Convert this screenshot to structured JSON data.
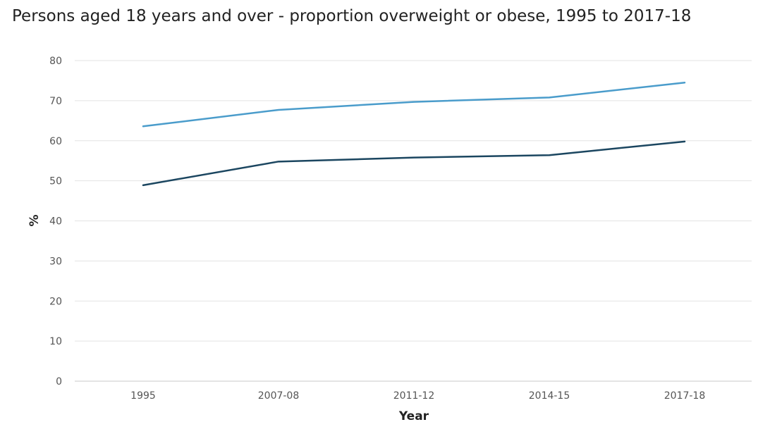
{
  "chart_data": {
    "type": "line",
    "title": "Persons aged 18 years and over - proportion overweight or obese, 1995 to 2017-18",
    "xlabel": "Year",
    "ylabel": "%",
    "categories": [
      "1995",
      "2007-08",
      "2011-12",
      "2014-15",
      "2017-18"
    ],
    "ylim": [
      0,
      80
    ],
    "yticks": [
      0,
      10,
      20,
      30,
      40,
      50,
      60,
      70,
      80
    ],
    "grid": true,
    "series": [
      {
        "values": [
          63.6,
          67.7,
          69.7,
          70.8,
          74.5
        ],
        "color": "#4a9ccb"
      },
      {
        "values": [
          48.9,
          54.8,
          55.8,
          56.4,
          59.8
        ],
        "color": "#1b4660"
      }
    ]
  }
}
